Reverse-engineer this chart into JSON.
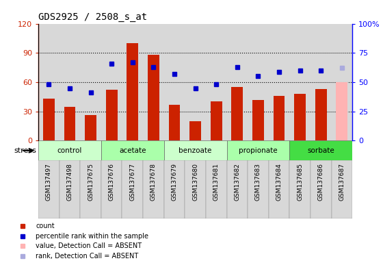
{
  "title": "GDS2925 / 2508_s_at",
  "samples": [
    "GSM137497",
    "GSM137498",
    "GSM137675",
    "GSM137676",
    "GSM137677",
    "GSM137678",
    "GSM137679",
    "GSM137680",
    "GSM137681",
    "GSM137682",
    "GSM137683",
    "GSM137684",
    "GSM137685",
    "GSM137686",
    "GSM137687"
  ],
  "bar_values": [
    43,
    35,
    26,
    52,
    100,
    88,
    37,
    20,
    40,
    55,
    42,
    46,
    48,
    53,
    60
  ],
  "bar_colors": [
    "#cc2200",
    "#cc2200",
    "#cc2200",
    "#cc2200",
    "#cc2200",
    "#cc2200",
    "#cc2200",
    "#cc2200",
    "#cc2200",
    "#cc2200",
    "#cc2200",
    "#cc2200",
    "#cc2200",
    "#cc2200",
    "#ffb3b3"
  ],
  "dot_values": [
    48,
    45,
    41,
    66,
    67,
    63,
    57,
    45,
    48,
    63,
    55,
    59,
    60,
    60,
    62
  ],
  "dot_absent": [
    false,
    false,
    false,
    false,
    false,
    false,
    false,
    false,
    false,
    false,
    false,
    false,
    false,
    false,
    true
  ],
  "groups": [
    {
      "label": "control",
      "start": 0,
      "end": 2,
      "color": "#ccffcc"
    },
    {
      "label": "acetate",
      "start": 3,
      "end": 5,
      "color": "#aaffaa"
    },
    {
      "label": "benzoate",
      "start": 6,
      "end": 8,
      "color": "#ccffcc"
    },
    {
      "label": "propionate",
      "start": 9,
      "end": 11,
      "color": "#aaffaa"
    },
    {
      "label": "sorbate",
      "start": 12,
      "end": 14,
      "color": "#44dd44"
    }
  ],
  "ylim_left": [
    0,
    120
  ],
  "ylim_right": [
    0,
    100
  ],
  "yticks_left": [
    0,
    30,
    60,
    90,
    120
  ],
  "ytick_labels_left": [
    "0",
    "30",
    "60",
    "90",
    "120"
  ],
  "yticks_right": [
    0,
    25,
    50,
    75,
    100
  ],
  "ytick_labels_right": [
    "0",
    "25",
    "50",
    "75",
    "100%"
  ],
  "grid_values": [
    30,
    60,
    90
  ],
  "bar_color_present": "#cc2200",
  "bar_color_absent": "#ffb3b3",
  "dot_color_present": "#0000cc",
  "dot_color_absent": "#aaaadd",
  "col_bg_color": "#d8d8d8",
  "legend_items": [
    {
      "label": "count",
      "color": "#cc2200"
    },
    {
      "label": "percentile rank within the sample",
      "color": "#0000cc"
    },
    {
      "label": "value, Detection Call = ABSENT",
      "color": "#ffb3b3"
    },
    {
      "label": "rank, Detection Call = ABSENT",
      "color": "#aaaadd"
    }
  ]
}
